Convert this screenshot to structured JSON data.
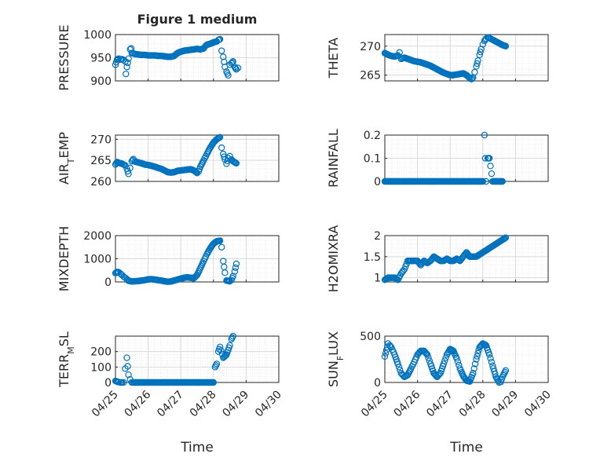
{
  "figure": {
    "title": "Figure 1 medium",
    "color": "#0072BD"
  },
  "chart_data": [
    {
      "type": "scatter",
      "ylabel": "PRESSURE",
      "title": "Figure 1 medium",
      "xlim": [
        "04/25",
        "04/29"
      ],
      "ylim": [
        900,
        1000
      ],
      "yticks": [
        "900",
        "950",
        "1000"
      ],
      "grid": true,
      "points": [
        [
          0.0,
          935
        ],
        [
          0.05,
          946
        ],
        [
          0.1,
          948
        ],
        [
          0.15,
          946
        ],
        [
          0.2,
          947
        ],
        [
          0.25,
          945
        ],
        [
          0.3,
          942
        ],
        [
          0.32,
          915
        ],
        [
          0.35,
          930
        ],
        [
          0.4,
          948
        ],
        [
          0.45,
          968
        ],
        [
          0.48,
          970
        ],
        [
          0.5,
          960
        ],
        [
          0.6,
          958
        ],
        [
          0.7,
          957
        ],
        [
          0.8,
          956
        ],
        [
          0.9,
          956
        ],
        [
          1.0,
          955
        ],
        [
          1.1,
          955
        ],
        [
          1.2,
          955
        ],
        [
          1.3,
          954
        ],
        [
          1.4,
          954
        ],
        [
          1.5,
          953
        ],
        [
          1.6,
          952
        ],
        [
          1.7,
          952
        ],
        [
          1.8,
          954
        ],
        [
          1.9,
          960
        ],
        [
          2.0,
          963
        ],
        [
          2.1,
          965
        ],
        [
          2.2,
          966
        ],
        [
          2.3,
          967
        ],
        [
          2.4,
          968
        ],
        [
          2.5,
          969
        ],
        [
          2.6,
          968
        ],
        [
          2.7,
          970
        ],
        [
          2.75,
          975
        ],
        [
          2.8,
          978
        ],
        [
          2.9,
          980
        ],
        [
          3.0,
          983
        ],
        [
          3.1,
          985
        ],
        [
          3.15,
          988
        ],
        [
          3.2,
          990
        ],
        [
          3.25,
          965
        ],
        [
          3.3,
          952
        ],
        [
          3.35,
          930
        ],
        [
          3.4,
          920
        ],
        [
          3.45,
          912
        ],
        [
          3.5,
          935
        ],
        [
          3.55,
          938
        ],
        [
          3.6,
          942
        ],
        [
          3.65,
          930
        ],
        [
          3.7,
          925
        ],
        [
          3.75,
          928
        ]
      ]
    },
    {
      "type": "scatter",
      "ylabel": "THETA",
      "xlim": [
        "04/25",
        "04/29"
      ],
      "ylim": [
        264,
        272
      ],
      "yticks": [
        "265",
        "270"
      ],
      "grid": true,
      "points": [
        [
          0.0,
          268.8
        ],
        [
          0.1,
          268.5
        ],
        [
          0.2,
          268.3
        ],
        [
          0.3,
          268.2
        ],
        [
          0.4,
          268.4
        ],
        [
          0.45,
          268.9
        ],
        [
          0.5,
          267.8
        ],
        [
          0.6,
          268.0
        ],
        [
          0.7,
          267.8
        ],
        [
          0.8,
          267.6
        ],
        [
          0.9,
          267.4
        ],
        [
          1.0,
          267.3
        ],
        [
          1.1,
          267.2
        ],
        [
          1.2,
          267.0
        ],
        [
          1.3,
          266.8
        ],
        [
          1.4,
          266.6
        ],
        [
          1.5,
          266.3
        ],
        [
          1.6,
          266.0
        ],
        [
          1.7,
          265.7
        ],
        [
          1.8,
          265.4
        ],
        [
          1.9,
          265.2
        ],
        [
          2.0,
          265.0
        ],
        [
          2.1,
          265.0
        ],
        [
          2.2,
          265.1
        ],
        [
          2.3,
          265.2
        ],
        [
          2.4,
          265.3
        ],
        [
          2.5,
          265.0
        ],
        [
          2.6,
          264.5
        ],
        [
          2.65,
          264.3
        ],
        [
          2.7,
          264.6
        ],
        [
          2.75,
          265.5
        ],
        [
          2.8,
          266.5
        ],
        [
          2.85,
          267.5
        ],
        [
          2.9,
          268.5
        ],
        [
          2.95,
          269.5
        ],
        [
          3.0,
          270.3
        ],
        [
          3.05,
          270.9
        ],
        [
          3.1,
          271.3
        ],
        [
          3.15,
          271.5
        ],
        [
          3.2,
          271.4
        ],
        [
          3.3,
          271.1
        ],
        [
          3.4,
          270.8
        ],
        [
          3.5,
          270.5
        ],
        [
          3.6,
          270.2
        ],
        [
          3.7,
          270.0
        ]
      ]
    },
    {
      "type": "scatter",
      "ylabel": "AIR_TEMP",
      "xlim": [
        "04/25",
        "04/29"
      ],
      "ylim": [
        260,
        271
      ],
      "yticks": [
        "260",
        "265",
        "270"
      ],
      "grid": true,
      "points": [
        [
          0.0,
          264.0
        ],
        [
          0.05,
          264.6
        ],
        [
          0.1,
          264.4
        ],
        [
          0.2,
          264.2
        ],
        [
          0.3,
          263.8
        ],
        [
          0.35,
          263.0
        ],
        [
          0.4,
          261.8
        ],
        [
          0.45,
          263.2
        ],
        [
          0.5,
          264.8
        ],
        [
          0.55,
          265.3
        ],
        [
          0.6,
          264.7
        ],
        [
          0.7,
          264.5
        ],
        [
          0.8,
          264.3
        ],
        [
          0.9,
          264.0
        ],
        [
          1.0,
          263.9
        ],
        [
          1.1,
          263.7
        ],
        [
          1.2,
          263.5
        ],
        [
          1.3,
          263.2
        ],
        [
          1.4,
          263.0
        ],
        [
          1.5,
          262.6
        ],
        [
          1.6,
          262.2
        ],
        [
          1.7,
          262.1
        ],
        [
          1.8,
          262.2
        ],
        [
          1.9,
          262.5
        ],
        [
          2.0,
          262.6
        ],
        [
          2.1,
          262.7
        ],
        [
          2.2,
          262.8
        ],
        [
          2.3,
          262.9
        ],
        [
          2.4,
          262.6
        ],
        [
          2.5,
          262.0
        ],
        [
          2.55,
          262.4
        ],
        [
          2.6,
          263.5
        ],
        [
          2.7,
          265.0
        ],
        [
          2.8,
          266.5
        ],
        [
          2.9,
          268.0
        ],
        [
          3.0,
          269.2
        ],
        [
          3.1,
          270.0
        ],
        [
          3.2,
          270.5
        ],
        [
          3.25,
          268.0
        ],
        [
          3.3,
          266.5
        ],
        [
          3.35,
          265.2
        ],
        [
          3.4,
          264.2
        ],
        [
          3.45,
          265.5
        ],
        [
          3.5,
          266.0
        ],
        [
          3.55,
          265.2
        ],
        [
          3.6,
          264.8
        ],
        [
          3.7,
          264.3
        ]
      ]
    },
    {
      "type": "scatter",
      "ylabel": "RAINFALL",
      "xlim": [
        "04/25",
        "04/29"
      ],
      "ylim": [
        0,
        0.2
      ],
      "yticks": [
        "0",
        "0.1",
        "0.2"
      ],
      "grid": true,
      "points": [
        [
          0.0,
          0
        ],
        [
          0.2,
          0
        ],
        [
          0.4,
          0
        ],
        [
          0.6,
          0
        ],
        [
          0.8,
          0
        ],
        [
          1.0,
          0
        ],
        [
          1.2,
          0
        ],
        [
          1.4,
          0
        ],
        [
          1.6,
          0
        ],
        [
          1.8,
          0
        ],
        [
          2.0,
          0
        ],
        [
          2.2,
          0
        ],
        [
          2.4,
          0
        ],
        [
          2.6,
          0
        ],
        [
          2.8,
          0
        ],
        [
          2.9,
          0
        ],
        [
          3.0,
          0
        ],
        [
          3.05,
          0.2
        ],
        [
          3.1,
          0
        ],
        [
          3.15,
          0.1
        ],
        [
          3.2,
          0.1
        ],
        [
          3.3,
          0
        ],
        [
          3.4,
          0
        ],
        [
          3.5,
          0
        ],
        [
          3.6,
          0
        ]
      ]
    },
    {
      "type": "scatter",
      "ylabel": "MIXDEPTH",
      "xlim": [
        "04/25",
        "04/29"
      ],
      "ylim": [
        0,
        2000
      ],
      "yticks": [
        "0",
        "1000",
        "2000"
      ],
      "grid": true,
      "points": [
        [
          0.0,
          380
        ],
        [
          0.05,
          430
        ],
        [
          0.1,
          420
        ],
        [
          0.15,
          360
        ],
        [
          0.2,
          300
        ],
        [
          0.25,
          230
        ],
        [
          0.3,
          180
        ],
        [
          0.35,
          120
        ],
        [
          0.4,
          50
        ],
        [
          0.5,
          20
        ],
        [
          0.6,
          30
        ],
        [
          0.7,
          40
        ],
        [
          0.8,
          60
        ],
        [
          0.9,
          80
        ],
        [
          1.0,
          110
        ],
        [
          1.1,
          120
        ],
        [
          1.2,
          100
        ],
        [
          1.3,
          80
        ],
        [
          1.4,
          60
        ],
        [
          1.5,
          30
        ],
        [
          1.6,
          10
        ],
        [
          1.7,
          20
        ],
        [
          1.8,
          60
        ],
        [
          1.9,
          100
        ],
        [
          2.0,
          140
        ],
        [
          2.1,
          180
        ],
        [
          2.2,
          200
        ],
        [
          2.3,
          180
        ],
        [
          2.4,
          160
        ],
        [
          2.5,
          300
        ],
        [
          2.6,
          600
        ],
        [
          2.7,
          900
        ],
        [
          2.8,
          1200
        ],
        [
          2.9,
          1450
        ],
        [
          3.0,
          1650
        ],
        [
          3.1,
          1750
        ],
        [
          3.2,
          1780
        ],
        [
          3.25,
          1500
        ],
        [
          3.3,
          900
        ],
        [
          3.35,
          400
        ],
        [
          3.4,
          60
        ],
        [
          3.5,
          30
        ],
        [
          3.55,
          80
        ],
        [
          3.6,
          250
        ],
        [
          3.65,
          450
        ],
        [
          3.7,
          780
        ]
      ]
    },
    {
      "type": "scatter",
      "ylabel": "H2OMIXRA",
      "xlim": [
        "04/25",
        "04/29"
      ],
      "ylim": [
        0.9,
        2.0
      ],
      "yticks": [
        "1",
        "1.5",
        "2"
      ],
      "grid": true,
      "points": [
        [
          0.0,
          0.95
        ],
        [
          0.1,
          1.0
        ],
        [
          0.2,
          1.0
        ],
        [
          0.3,
          1.0
        ],
        [
          0.4,
          0.95
        ],
        [
          0.5,
          1.1
        ],
        [
          0.6,
          1.2
        ],
        [
          0.7,
          1.4
        ],
        [
          0.8,
          1.4
        ],
        [
          0.9,
          1.4
        ],
        [
          1.0,
          1.4
        ],
        [
          1.1,
          1.3
        ],
        [
          1.2,
          1.4
        ],
        [
          1.3,
          1.35
        ],
        [
          1.4,
          1.4
        ],
        [
          1.5,
          1.5
        ],
        [
          1.6,
          1.45
        ],
        [
          1.7,
          1.4
        ],
        [
          1.8,
          1.4
        ],
        [
          1.9,
          1.45
        ],
        [
          2.0,
          1.4
        ],
        [
          2.1,
          1.4
        ],
        [
          2.2,
          1.45
        ],
        [
          2.3,
          1.4
        ],
        [
          2.4,
          1.5
        ],
        [
          2.5,
          1.6
        ],
        [
          2.6,
          1.5
        ],
        [
          2.7,
          1.5
        ],
        [
          2.8,
          1.5
        ],
        [
          2.9,
          1.55
        ],
        [
          3.0,
          1.6
        ],
        [
          3.1,
          1.65
        ],
        [
          3.2,
          1.7
        ],
        [
          3.3,
          1.75
        ],
        [
          3.4,
          1.8
        ],
        [
          3.5,
          1.85
        ],
        [
          3.6,
          1.9
        ],
        [
          3.7,
          1.95
        ]
      ]
    },
    {
      "type": "scatter",
      "ylabel": "TERR_MSL",
      "xlim": [
        "04/25",
        "04/29"
      ],
      "ylim": [
        0,
        300
      ],
      "yticks": [
        "0",
        "100",
        "200"
      ],
      "grid": true,
      "points": [
        [
          0.0,
          10
        ],
        [
          0.05,
          5
        ],
        [
          0.1,
          2
        ],
        [
          0.15,
          0
        ],
        [
          0.2,
          0
        ],
        [
          0.25,
          0
        ],
        [
          0.3,
          90
        ],
        [
          0.35,
          160
        ],
        [
          0.4,
          50
        ],
        [
          0.45,
          20
        ],
        [
          0.5,
          0
        ],
        [
          0.6,
          0
        ],
        [
          0.8,
          0
        ],
        [
          1.0,
          0
        ],
        [
          1.2,
          0
        ],
        [
          1.4,
          0
        ],
        [
          1.6,
          0
        ],
        [
          1.8,
          0
        ],
        [
          2.0,
          0
        ],
        [
          2.2,
          0
        ],
        [
          2.4,
          0
        ],
        [
          2.6,
          0
        ],
        [
          2.8,
          0
        ],
        [
          2.9,
          0
        ],
        [
          3.0,
          0
        ],
        [
          3.05,
          100
        ],
        [
          3.1,
          120
        ],
        [
          3.15,
          200
        ],
        [
          3.2,
          230
        ],
        [
          3.3,
          160
        ],
        [
          3.4,
          180
        ],
        [
          3.5,
          240
        ],
        [
          3.55,
          280
        ],
        [
          3.6,
          300
        ]
      ]
    },
    {
      "type": "scatter",
      "ylabel": "SUN_FLUX",
      "xlim": [
        "04/25",
        "04/29"
      ],
      "ylim": [
        0,
        500
      ],
      "yticks": [
        "0",
        "500"
      ],
      "grid": true,
      "points": [
        [
          0.0,
          280
        ],
        [
          0.05,
          350
        ],
        [
          0.1,
          420
        ],
        [
          0.15,
          400
        ],
        [
          0.2,
          380
        ],
        [
          0.3,
          300
        ],
        [
          0.4,
          200
        ],
        [
          0.5,
          100
        ],
        [
          0.6,
          60
        ],
        [
          0.7,
          80
        ],
        [
          0.8,
          150
        ],
        [
          0.9,
          220
        ],
        [
          1.0,
          300
        ],
        [
          1.1,
          340
        ],
        [
          1.2,
          340
        ],
        [
          1.3,
          300
        ],
        [
          1.4,
          200
        ],
        [
          1.5,
          100
        ],
        [
          1.6,
          60
        ],
        [
          1.7,
          100
        ],
        [
          1.8,
          200
        ],
        [
          1.9,
          300
        ],
        [
          2.0,
          360
        ],
        [
          2.1,
          340
        ],
        [
          2.2,
          260
        ],
        [
          2.3,
          150
        ],
        [
          2.4,
          70
        ],
        [
          2.5,
          20
        ],
        [
          2.6,
          10
        ],
        [
          2.7,
          100
        ],
        [
          2.8,
          250
        ],
        [
          2.9,
          380
        ],
        [
          3.0,
          420
        ],
        [
          3.1,
          400
        ],
        [
          3.2,
          300
        ],
        [
          3.3,
          180
        ],
        [
          3.4,
          60
        ],
        [
          3.5,
          0
        ],
        [
          3.55,
          5
        ],
        [
          3.6,
          60
        ],
        [
          3.7,
          130
        ]
      ]
    }
  ],
  "axes": {
    "xticks": [
      "04/25",
      "04/26",
      "04/27",
      "04/28",
      "04/29",
      "04/30"
    ],
    "xlabel_left": "Time",
    "xlabel_right": "Time"
  }
}
